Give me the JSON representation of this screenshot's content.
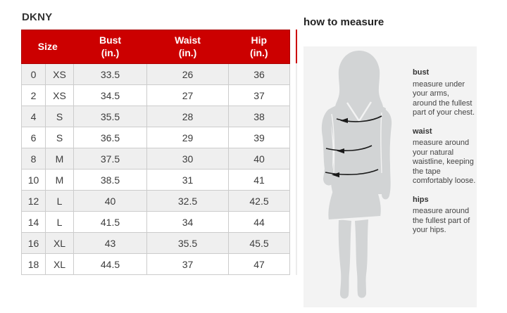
{
  "brand": "DKNY",
  "size_chart": {
    "header": {
      "size": "Size",
      "bust": "Bust\n(in.)",
      "waist": "Waist\n(in.)",
      "hip": "Hip\n(in.)"
    },
    "rows": [
      [
        "0",
        "XS",
        "33.5",
        "26",
        "36"
      ],
      [
        "2",
        "XS",
        "34.5",
        "27",
        "37"
      ],
      [
        "4",
        "S",
        "35.5",
        "28",
        "38"
      ],
      [
        "6",
        "S",
        "36.5",
        "29",
        "39"
      ],
      [
        "8",
        "M",
        "37.5",
        "30",
        "40"
      ],
      [
        "10",
        "M",
        "38.5",
        "31",
        "41"
      ],
      [
        "12",
        "L",
        "40",
        "32.5",
        "42.5"
      ],
      [
        "14",
        "L",
        "41.5",
        "34",
        "44"
      ],
      [
        "16",
        "XL",
        "43",
        "35.5",
        "45.5"
      ],
      [
        "18",
        "XL",
        "44.5",
        "37",
        "47"
      ]
    ]
  },
  "how_to_measure": {
    "title": "how to measure",
    "figure": "woman-silhouette-with-measurement-arrows",
    "sections": [
      {
        "label": "bust",
        "text": "measure under\nyour arms,\naround the fullest\npart of your chest."
      },
      {
        "label": "waist",
        "text": "measure around\nyour natural\nwaistline, keeping\nthe tape\ncomfortably loose."
      },
      {
        "label": "hips",
        "text": "measure around\nthe fullest part of\nyour hips."
      }
    ]
  },
  "colors": {
    "header_bg": "#cc0000",
    "header_border": "#aa0000",
    "header_text": "#ffffff",
    "row_alt_bg": "#efefef",
    "table_border": "#cccccc",
    "panel_bg": "#f3f3f3",
    "silhouette": "#d2d4d5",
    "arrow": "#1a1a1a"
  }
}
